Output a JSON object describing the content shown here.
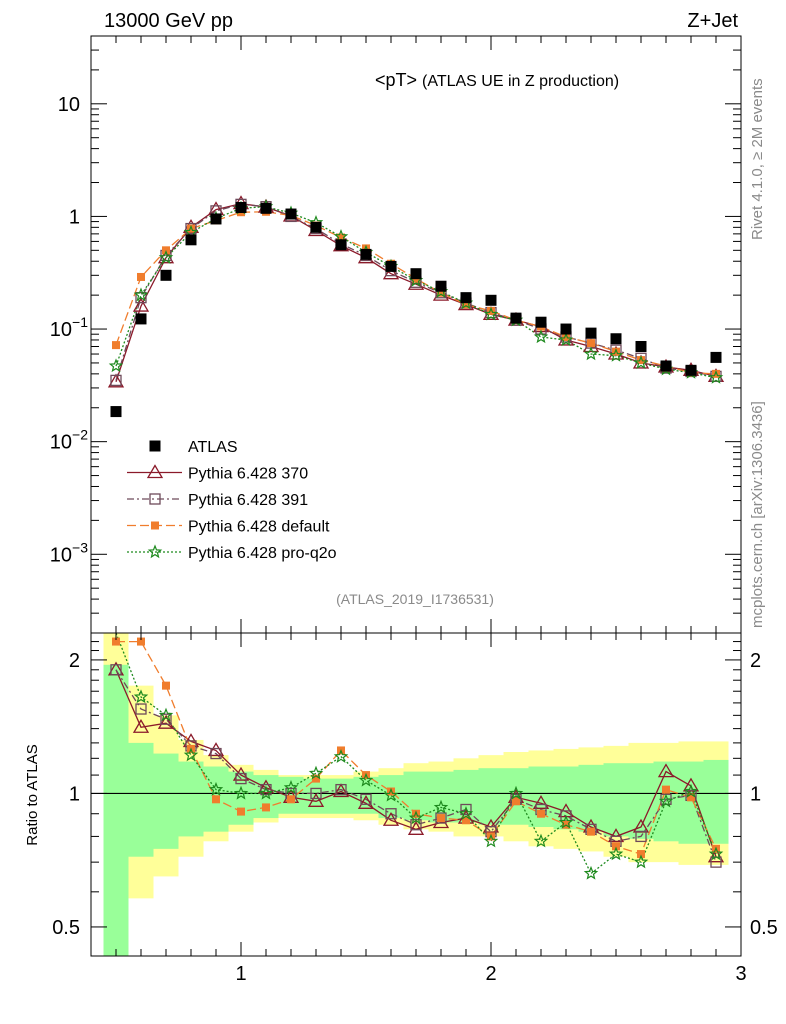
{
  "header": {
    "left": "13000 GeV pp",
    "right": "Z+Jet"
  },
  "side": {
    "rivet": "Rivet 4.1.0, ≥ 2M events",
    "mcplots": "mcplots.cern.ch [arXiv:1306.3436]"
  },
  "chart_data": {
    "type": "scatter",
    "title_main": "<pT>",
    "title_sub": "(ATLAS UE in Z production)",
    "analysis_id": "(ATLAS_2019_I1736531)",
    "xlabel": "",
    "ylabel_ratio": "Ratio to ATLAS",
    "xlim": [
      0.4,
      3.0
    ],
    "main_ylim": [
      0.0002,
      40
    ],
    "ratio_ylim": [
      0.43,
      2.3
    ],
    "main_y_ticks": [
      {
        "value": 10,
        "label": "10"
      },
      {
        "value": 1,
        "label": "1"
      },
      {
        "value": 0.1,
        "base": "10",
        "exp": "−1"
      },
      {
        "value": 0.01,
        "base": "10",
        "exp": "−2"
      },
      {
        "value": 0.001,
        "base": "10",
        "exp": "−3"
      }
    ],
    "ratio_y_ticks": [
      {
        "value": 2,
        "label": "2"
      },
      {
        "value": 1,
        "label": "1"
      },
      {
        "value": 0.5,
        "label": "0.5"
      }
    ],
    "x_ticks": [
      {
        "value": 1,
        "label": "1"
      },
      {
        "value": 2,
        "label": "2"
      },
      {
        "value": 3,
        "label": "3"
      }
    ],
    "x": [
      0.5,
      0.6,
      0.7,
      0.8,
      0.9,
      1.0,
      1.1,
      1.2,
      1.3,
      1.4,
      1.5,
      1.6,
      1.7,
      1.8,
      1.9,
      2.0,
      2.1,
      2.2,
      2.3,
      2.4,
      2.5,
      2.6,
      2.7,
      2.8,
      2.9
    ],
    "atlas": [
      0.0185,
      0.123,
      0.3,
      0.62,
      0.95,
      1.2,
      1.18,
      1.05,
      0.8,
      0.56,
      0.46,
      0.36,
      0.31,
      0.24,
      0.19,
      0.18,
      0.125,
      0.115,
      0.1,
      0.092,
      0.082,
      0.07,
      0.047,
      0.043,
      0.056
    ],
    "band_inner": [
      [
        0.43,
        1.95
      ],
      [
        0.72,
        1.3
      ],
      [
        0.75,
        1.23
      ],
      [
        0.8,
        1.18
      ],
      [
        0.82,
        1.15
      ],
      [
        0.85,
        1.12
      ],
      [
        0.88,
        1.1
      ],
      [
        0.9,
        1.09
      ],
      [
        0.9,
        1.08
      ],
      [
        0.9,
        1.08
      ],
      [
        0.9,
        1.09
      ],
      [
        0.88,
        1.1
      ],
      [
        0.87,
        1.12
      ],
      [
        0.86,
        1.12
      ],
      [
        0.86,
        1.13
      ],
      [
        0.85,
        1.14
      ],
      [
        0.85,
        1.14
      ],
      [
        0.84,
        1.15
      ],
      [
        0.83,
        1.15
      ],
      [
        0.82,
        1.16
      ],
      [
        0.8,
        1.17
      ],
      [
        0.79,
        1.17
      ],
      [
        0.78,
        1.18
      ],
      [
        0.77,
        1.18
      ],
      [
        0.77,
        1.19
      ]
    ],
    "band_outer": [
      [
        0.43,
        2.3
      ],
      [
        0.58,
        1.75
      ],
      [
        0.65,
        1.5
      ],
      [
        0.72,
        1.32
      ],
      [
        0.78,
        1.22
      ],
      [
        0.82,
        1.16
      ],
      [
        0.86,
        1.13
      ],
      [
        0.88,
        1.1
      ],
      [
        0.88,
        1.1
      ],
      [
        0.88,
        1.1
      ],
      [
        0.87,
        1.12
      ],
      [
        0.85,
        1.14
      ],
      [
        0.83,
        1.17
      ],
      [
        0.82,
        1.18
      ],
      [
        0.8,
        1.2
      ],
      [
        0.8,
        1.22
      ],
      [
        0.78,
        1.24
      ],
      [
        0.76,
        1.25
      ],
      [
        0.75,
        1.26
      ],
      [
        0.74,
        1.27
      ],
      [
        0.72,
        1.28
      ],
      [
        0.7,
        1.3
      ],
      [
        0.7,
        1.3
      ],
      [
        0.69,
        1.31
      ],
      [
        0.69,
        1.31
      ]
    ],
    "series": [
      {
        "name": "ATLAS",
        "ratio": [
          1.0,
          1.0,
          1.0,
          1.0,
          1.0,
          1.0,
          1.0,
          1.0,
          1.0,
          1.0,
          1.0,
          1.0,
          1.0,
          1.0,
          1.0,
          1.0,
          1.0,
          1.0,
          1.0,
          1.0,
          1.0,
          1.0,
          1.0,
          1.0,
          1.0
        ]
      },
      {
        "name": "Pythia 6.428 370",
        "color": "#8b1a2a",
        "marker": "triangle-open",
        "dash": "solid",
        "values": [
          0.034,
          0.16,
          0.43,
          0.8,
          1.15,
          1.3,
          1.21,
          1.01,
          0.75,
          0.55,
          0.43,
          0.31,
          0.25,
          0.2,
          0.165,
          0.135,
          0.12,
          0.105,
          0.08,
          0.07,
          0.06,
          0.05,
          0.046,
          0.043,
          0.038
        ],
        "ratio": [
          1.9,
          1.41,
          1.44,
          1.31,
          1.25,
          1.1,
          1.03,
          0.98,
          0.96,
          1.01,
          0.95,
          0.87,
          0.83,
          0.86,
          0.88,
          0.84,
          0.98,
          0.95,
          0.91,
          0.84,
          0.8,
          0.84,
          1.12,
          1.04,
          0.72
        ]
      },
      {
        "name": "Pythia 6.428 391",
        "color": "#6e4a5a",
        "marker": "square-open",
        "dash": "dashdot",
        "values": [
          0.035,
          0.19,
          0.45,
          0.78,
          1.12,
          1.28,
          1.22,
          1.0,
          0.78,
          0.57,
          0.45,
          0.33,
          0.26,
          0.21,
          0.17,
          0.14,
          0.12,
          0.1,
          0.085,
          0.075,
          0.065,
          0.055,
          0.045,
          0.042,
          0.038
        ],
        "ratio": [
          1.9,
          1.55,
          1.47,
          1.28,
          1.23,
          1.08,
          1.02,
          1.0,
          1.0,
          1.02,
          0.97,
          0.9,
          0.85,
          0.88,
          0.92,
          0.82,
          0.97,
          0.92,
          0.89,
          0.83,
          0.78,
          0.8,
          0.97,
          0.99,
          0.7
        ]
      },
      {
        "name": "Pythia 6.428 default",
        "color": "#f07d2d",
        "marker": "square-filled",
        "dash": "longdash",
        "values": [
          0.072,
          0.29,
          0.5,
          0.78,
          0.92,
          1.09,
          1.1,
          1.02,
          0.83,
          0.65,
          0.52,
          0.38,
          0.28,
          0.21,
          0.165,
          0.145,
          0.12,
          0.105,
          0.085,
          0.075,
          0.063,
          0.053,
          0.047,
          0.041,
          0.04
        ],
        "ratio": [
          2.2,
          2.2,
          1.75,
          1.26,
          0.97,
          0.91,
          0.93,
          0.97,
          1.08,
          1.25,
          1.1,
          1.01,
          0.9,
          0.88,
          0.87,
          0.8,
          0.96,
          0.9,
          0.85,
          0.82,
          0.76,
          0.73,
          1.02,
          0.98,
          0.75
        ]
      },
      {
        "name": "Pythia 6.428 pro-q2o",
        "color": "#1e8a1e",
        "marker": "star",
        "dash": "dotted",
        "values": [
          0.047,
          0.2,
          0.43,
          0.72,
          0.96,
          1.18,
          1.22,
          1.07,
          0.88,
          0.66,
          0.48,
          0.36,
          0.27,
          0.215,
          0.17,
          0.135,
          0.12,
          0.085,
          0.08,
          0.06,
          0.058,
          0.05,
          0.044,
          0.041,
          0.037
        ],
        "ratio": [
          2.3,
          1.65,
          1.5,
          1.22,
          1.02,
          1.0,
          1.0,
          1.03,
          1.11,
          1.21,
          1.07,
          0.99,
          0.88,
          0.93,
          0.9,
          0.78,
          1.0,
          0.78,
          0.86,
          0.66,
          0.73,
          0.7,
          0.96,
          1.01,
          0.73
        ]
      }
    ]
  }
}
